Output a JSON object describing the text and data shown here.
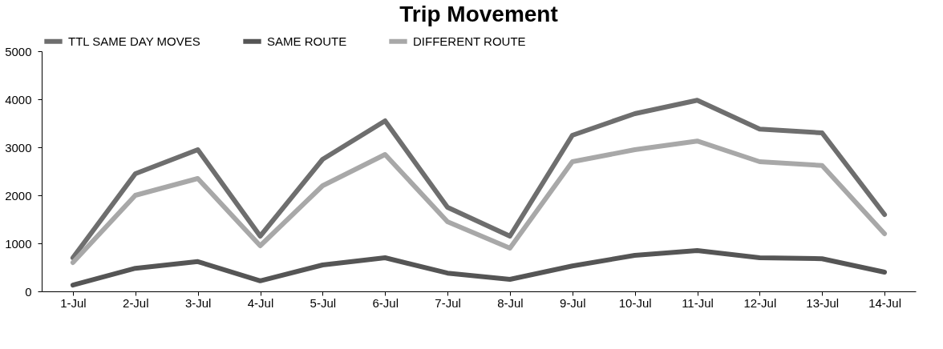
{
  "chart_data": {
    "type": "line",
    "title": "Trip Movement",
    "categories": [
      "1-Jul",
      "2-Jul",
      "3-Jul",
      "4-Jul",
      "5-Jul",
      "6-Jul",
      "7-Jul",
      "8-Jul",
      "9-Jul",
      "10-Jul",
      "11-Jul",
      "12-Jul",
      "13-Jul",
      "14-Jul"
    ],
    "series": [
      {
        "name": "TTL SAME DAY MOVES",
        "color": "#6e6e6e",
        "values": [
          700,
          2450,
          2950,
          1150,
          2750,
          3550,
          1750,
          1150,
          3250,
          3700,
          3980,
          3380,
          3300,
          1600
        ]
      },
      {
        "name": "SAME ROUTE",
        "color": "#555555",
        "values": [
          130,
          480,
          620,
          220,
          550,
          700,
          380,
          250,
          530,
          750,
          850,
          700,
          680,
          400
        ]
      },
      {
        "name": "DIFFERENT ROUTE",
        "color": "#a8a8a8",
        "values": [
          600,
          2000,
          2350,
          950,
          2200,
          2850,
          1450,
          900,
          2700,
          2950,
          3130,
          2700,
          2620,
          1200
        ]
      }
    ],
    "ylim": [
      0,
      5000
    ],
    "yticks": [
      0,
      1000,
      2000,
      3000,
      4000,
      5000
    ],
    "grid": false,
    "legend": "top",
    "marker": "none",
    "line_style": "solid"
  }
}
